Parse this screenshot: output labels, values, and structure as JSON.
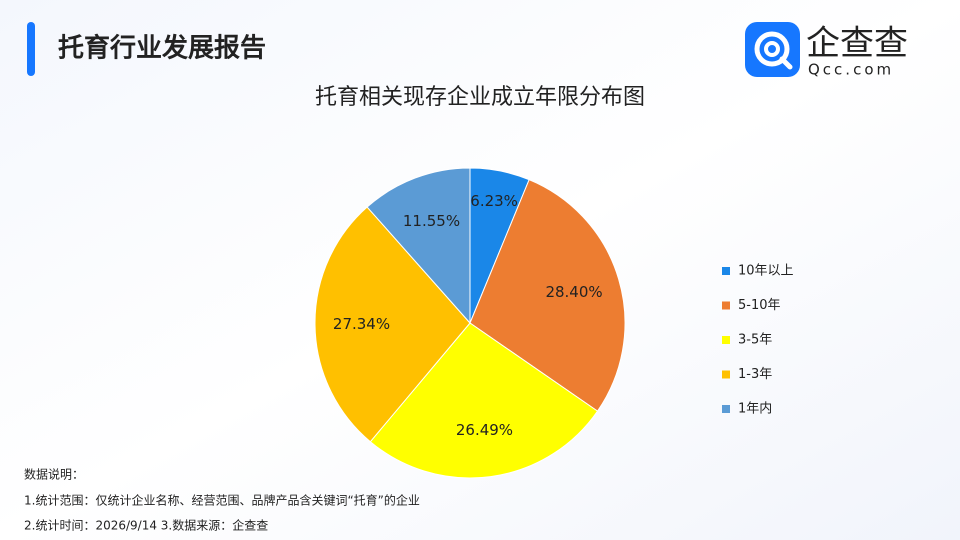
{
  "header": {
    "title": "托育行业发展报告",
    "logo_text": "企查查",
    "logo_sub": "Qcc.com"
  },
  "chart_data": {
    "type": "pie",
    "title": "托育相关现存企业成立年限分布图",
    "categories": [
      "10年以上",
      "5-10年",
      "3-5年",
      "1-3年",
      "1年内"
    ],
    "values": [
      6.23,
      28.4,
      26.49,
      27.34,
      11.55
    ],
    "value_labels": [
      "6.23%",
      "28.40%",
      "26.49%",
      "27.34%",
      "11.55%"
    ],
    "colors": [
      "#1a87e8",
      "#ed7d31",
      "#ffff00",
      "#ffc000",
      "#5b9bd5"
    ],
    "legend": "right"
  },
  "notes": {
    "heading": "数据说明：",
    "lines": [
      "1.统计范围：仅统计企业名称、经营范围、品牌产品含关键词“托育”的企业",
      "2.统计时间：2026/9/14  3.数据来源：企查查"
    ]
  }
}
